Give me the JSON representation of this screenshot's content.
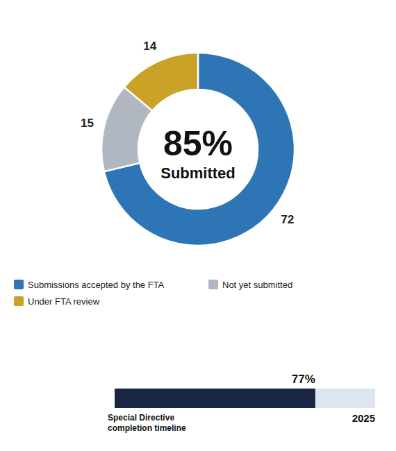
{
  "chart_data": [
    {
      "type": "pie",
      "categories": [
        "Submissions accepted by the FTA",
        "Not yet submitted",
        "Under FTA review"
      ],
      "values": [
        72,
        15,
        14
      ],
      "colors": [
        "#2E75B6",
        "#B0B7C0",
        "#C9A227"
      ],
      "data_labels": true,
      "legend": "bottom",
      "annotations": [
        "85%",
        "Submitted"
      ]
    },
    {
      "type": "bar",
      "orientation": "horizontal",
      "categories": [
        "Special Directive\ncompletion timeline"
      ],
      "values": [
        77
      ],
      "value_labels": [
        "77%"
      ],
      "color": "#1A2744",
      "data_labels": true,
      "xlim": [
        0,
        100
      ],
      "tick_labels": false,
      "annotations": [
        "2025"
      ]
    }
  ]
}
